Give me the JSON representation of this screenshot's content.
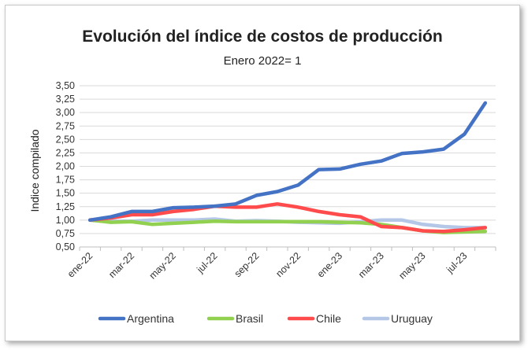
{
  "chart_data": {
    "type": "line",
    "title": "Evolución del índice de costos de producción",
    "subtitle": "Enero 2022= 1",
    "xlabel": "",
    "ylabel": "Indice compilado",
    "ylim": [
      0.5,
      3.5
    ],
    "ytick_step": 0.25,
    "yticks": [
      "0,50",
      "0,75",
      "1,00",
      "1,25",
      "1,50",
      "1,75",
      "2,00",
      "2,25",
      "2,50",
      "2,75",
      "3,00",
      "3,25",
      "3,50"
    ],
    "grid": true,
    "legend": "bottom",
    "x_tick_labels": [
      "ene-22",
      "mar-22",
      "may-22",
      "jul-22",
      "sep-22",
      "nov-22",
      "ene-23",
      "mar-23",
      "may-23",
      "jul-23"
    ],
    "x": [
      "ene-22",
      "feb-22",
      "mar-22",
      "abr-22",
      "may-22",
      "jun-22",
      "jul-22",
      "ago-22",
      "sep-22",
      "oct-22",
      "nov-22",
      "dic-22",
      "ene-23",
      "feb-23",
      "mar-23",
      "abr-23",
      "may-23",
      "jun-23",
      "jul-23",
      "ago-23"
    ],
    "series": [
      {
        "name": "Argentina",
        "color": "#4472C4",
        "values": [
          1.0,
          1.06,
          1.16,
          1.16,
          1.23,
          1.24,
          1.26,
          1.3,
          1.46,
          1.53,
          1.65,
          1.94,
          1.95,
          2.04,
          2.1,
          2.24,
          2.27,
          2.32,
          2.6,
          3.18
        ]
      },
      {
        "name": "Brasil",
        "color": "#92D050",
        "values": [
          1.0,
          0.96,
          0.97,
          0.92,
          0.94,
          0.96,
          0.98,
          0.97,
          0.97,
          0.97,
          0.97,
          0.97,
          0.96,
          0.95,
          0.92,
          0.86,
          0.8,
          0.77,
          0.78,
          0.79
        ]
      },
      {
        "name": "Chile",
        "color": "#FF4B4B",
        "values": [
          1.0,
          1.04,
          1.1,
          1.1,
          1.16,
          1.2,
          1.26,
          1.24,
          1.24,
          1.3,
          1.24,
          1.16,
          1.1,
          1.06,
          0.88,
          0.86,
          0.8,
          0.79,
          0.82,
          0.86
        ]
      },
      {
        "name": "Uruguay",
        "color": "#B4C7E7",
        "values": [
          1.0,
          0.98,
          0.98,
          1.0,
          1.0,
          1.0,
          1.02,
          0.98,
          0.99,
          0.98,
          0.96,
          0.95,
          0.94,
          0.97,
          1.0,
          1.0,
          0.92,
          0.88,
          0.86,
          0.86
        ]
      }
    ]
  }
}
